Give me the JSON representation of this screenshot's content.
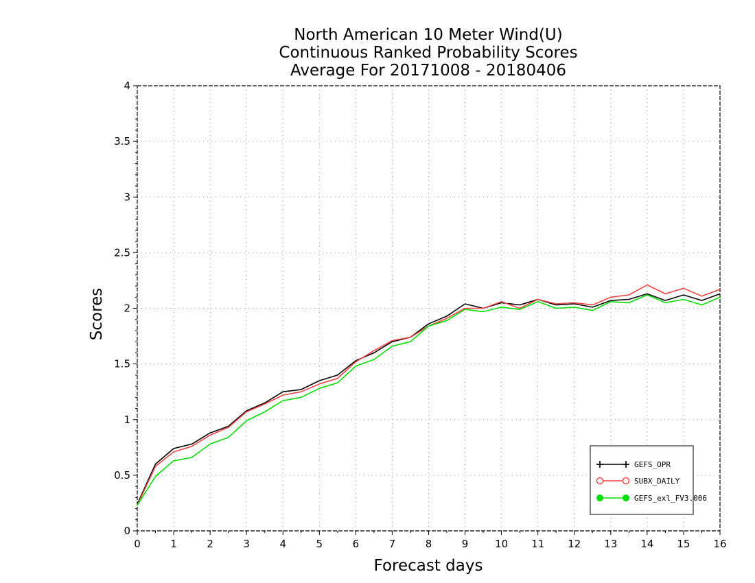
{
  "chart_data": {
    "type": "line",
    "title_lines": [
      "North American 10 Meter Wind(U)",
      "Continuous Ranked Probability Scores",
      "Average For 20171008 - 20180406"
    ],
    "xlabel": "Forecast days",
    "ylabel": "Scores",
    "xlim": [
      0,
      16
    ],
    "ylim": [
      0,
      4
    ],
    "x_ticks": [
      0,
      1,
      2,
      3,
      4,
      5,
      6,
      7,
      8,
      9,
      10,
      11,
      12,
      13,
      14,
      15,
      16
    ],
    "x_tick_labels": [
      "0",
      "1",
      "2",
      "3",
      "4",
      "5",
      "6",
      "7",
      "8",
      "9",
      "10",
      "11",
      "12",
      "13",
      "14",
      "15",
      "16"
    ],
    "y_ticks": [
      0,
      0.5,
      1,
      1.5,
      2,
      2.5,
      3,
      3.5,
      4
    ],
    "y_tick_labels": [
      "0",
      "0.5",
      "1",
      "1.5",
      "2",
      "2.5",
      "3",
      "3.5",
      "4"
    ],
    "grid": true,
    "legend_position": "bottom-right",
    "x": [
      0,
      0.5,
      1,
      1.5,
      2,
      2.5,
      3,
      3.5,
      4,
      4.5,
      5,
      5.5,
      6,
      6.5,
      7,
      7.5,
      8,
      8.5,
      9,
      9.5,
      10,
      10.5,
      11,
      11.5,
      12,
      12.5,
      13,
      13.5,
      14,
      14.5,
      15,
      15.5,
      16
    ],
    "series": [
      {
        "name": "GEFS_OPR",
        "color": "#000000",
        "marker": "plus",
        "values": [
          0.24,
          0.6,
          0.74,
          0.78,
          0.88,
          0.94,
          1.08,
          1.15,
          1.25,
          1.27,
          1.35,
          1.4,
          1.53,
          1.6,
          1.7,
          1.74,
          1.86,
          1.93,
          2.04,
          2.0,
          2.05,
          2.03,
          2.08,
          2.03,
          2.04,
          2.01,
          2.07,
          2.08,
          2.13,
          2.07,
          2.12,
          2.07,
          2.13
        ]
      },
      {
        "name": "SUBX_DAILY",
        "color": "#ee4444",
        "marker": "open-circle",
        "values": [
          0.23,
          0.58,
          0.71,
          0.76,
          0.86,
          0.93,
          1.07,
          1.14,
          1.22,
          1.25,
          1.32,
          1.37,
          1.52,
          1.62,
          1.71,
          1.74,
          1.84,
          1.91,
          2.0,
          2.0,
          2.06,
          2.0,
          2.08,
          2.04,
          2.05,
          2.03,
          2.1,
          2.12,
          2.21,
          2.13,
          2.18,
          2.11,
          2.17
        ]
      },
      {
        "name": "GEFS_exl_FV3.006",
        "color": "#00dd00",
        "marker": "filled-circle",
        "values": [
          0.23,
          0.49,
          0.63,
          0.66,
          0.78,
          0.84,
          0.99,
          1.07,
          1.17,
          1.2,
          1.28,
          1.33,
          1.48,
          1.54,
          1.66,
          1.7,
          1.84,
          1.89,
          1.99,
          1.97,
          2.01,
          1.99,
          2.06,
          2.0,
          2.01,
          1.98,
          2.06,
          2.05,
          2.12,
          2.05,
          2.08,
          2.03,
          2.1
        ]
      }
    ]
  }
}
